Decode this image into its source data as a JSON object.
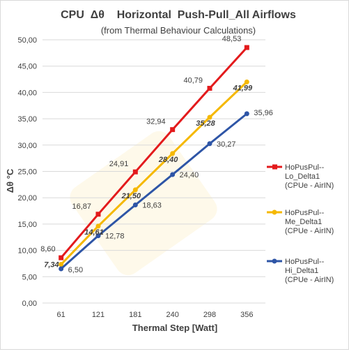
{
  "chart_data": {
    "type": "line",
    "title": "CPU  Δθ    Horizontal  Push-Pull_All Airflows",
    "subtitle": "(from Thermal Behaviour Calculations)",
    "xlabel": "Thermal Step [Watt]",
    "ylabel": "Δθ °C",
    "categories": [
      "61",
      "121",
      "181",
      "240",
      "298",
      "356"
    ],
    "y_ticks": [
      "0,00",
      "5,00",
      "10,00",
      "15,00",
      "20,00",
      "25,00",
      "30,00",
      "35,00",
      "40,00",
      "45,00",
      "50,00"
    ],
    "ylim": [
      0,
      50
    ],
    "grid": "horizontal",
    "legend_position": "right",
    "series": [
      {
        "name_lines": [
          "HoPusPul--",
          "Lo_Delta1",
          "(CPUe - AirIN)"
        ],
        "color": "#e31a1c",
        "marker": "square",
        "values": [
          8.6,
          16.87,
          24.91,
          32.94,
          40.79,
          48.53
        ],
        "labels": [
          "8,60",
          "16,87",
          "24,91",
          "32,94",
          "40,79",
          "48,53"
        ],
        "label_style": "normal"
      },
      {
        "name_lines": [
          "HoPusPul--",
          "Me_Delta1",
          "(CPUe - AirIN)"
        ],
        "color": "#f5b800",
        "marker": "circle",
        "values": [
          7.34,
          14.61,
          21.5,
          28.4,
          35.28,
          41.99
        ],
        "labels": [
          "7,34",
          "14,61",
          "21,50",
          "28,40",
          "35,28",
          "41,99"
        ],
        "label_style": "bold-italic"
      },
      {
        "name_lines": [
          "HoPusPul--",
          "Hi_Delta1",
          "(CPUe - AirIN)"
        ],
        "color": "#2e55a6",
        "marker": "circle",
        "values": [
          6.5,
          12.78,
          18.63,
          24.4,
          30.27,
          35.96
        ],
        "labels": [
          "6,50",
          "12,78",
          "18,63",
          "24,40",
          "30,27",
          "35,96"
        ],
        "label_style": "normal"
      }
    ]
  }
}
